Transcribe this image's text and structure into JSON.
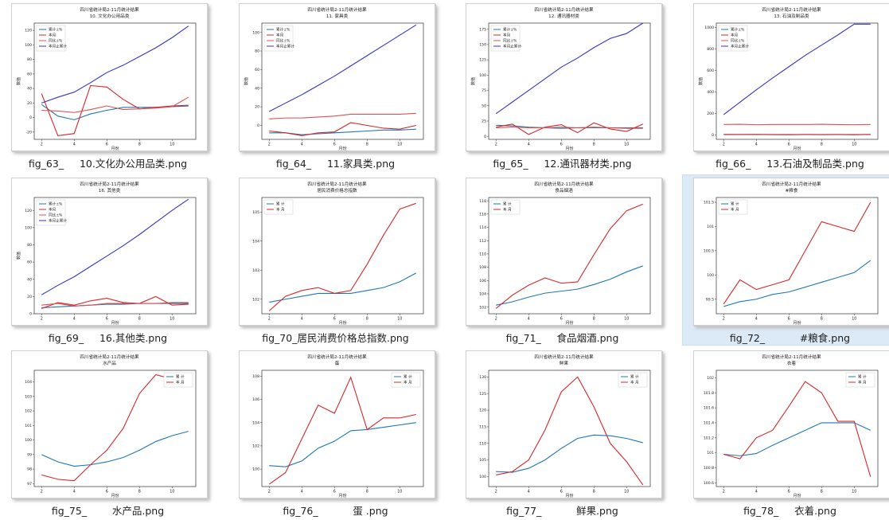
{
  "tiles": [
    {
      "caption": "fig_63_     10.文化办公用品类.png",
      "chart_data": {
        "type": "line",
        "title": "四川省统计局2-11月统计结果",
        "subtitle": "10. 文化办公用品类",
        "xlabel": "月份",
        "ylabel": "数值",
        "x": [
          2,
          3,
          4,
          5,
          6,
          7,
          8,
          9,
          10,
          11
        ],
        "xticks": [
          2,
          4,
          6,
          8,
          10
        ],
        "yticks": [
          -20,
          0,
          20,
          40,
          60,
          80,
          100,
          120
        ],
        "ylim": [
          -30,
          130
        ],
        "legend": "top-left",
        "series": [
          {
            "name": "累计±%",
            "color": "#1f77b4",
            "values": [
              18,
              2,
              -3,
              5,
              10,
              14,
              14,
              14,
              15,
              16
            ]
          },
          {
            "name": "本月",
            "color": "#d62728",
            "values": [
              33,
              -25,
              -22,
              44,
              42,
              25,
              12,
              14,
              16,
              17
            ]
          },
          {
            "name": "同比±%",
            "color": "#e05050",
            "values": [
              10,
              9,
              7,
              11,
              16,
              11,
              12,
              13,
              15,
              28
            ]
          },
          {
            "name": "本月止累计",
            "color": "#3535c8",
            "values": [
              20,
              28,
              35,
              48,
              62,
              72,
              84,
              96,
              110,
              126
            ]
          }
        ]
      }
    },
    {
      "caption": "fig_64_     11.家具类.png",
      "chart_data": {
        "type": "line",
        "title": "四川省统计局2-11月统计结果",
        "subtitle": "11. 家具类",
        "xlabel": "月份",
        "ylabel": "数值",
        "x": [
          2,
          3,
          4,
          5,
          6,
          7,
          8,
          9,
          10,
          11
        ],
        "xticks": [
          2,
          4,
          6,
          8,
          10
        ],
        "yticks": [
          0,
          20,
          40,
          60,
          80,
          100
        ],
        "ylim": [
          -15,
          110
        ],
        "legend": "top-left",
        "series": [
          {
            "name": "累计±%",
            "color": "#1f77b4",
            "values": [
              -8,
              -8,
              -10,
              -9,
              -8,
              -7,
              -6,
              -5,
              -5,
              -4
            ]
          },
          {
            "name": "本月",
            "color": "#d62728",
            "values": [
              -6,
              -8,
              -11,
              -8,
              -7,
              3,
              0,
              -3,
              -4,
              0
            ]
          },
          {
            "name": "同比±%",
            "color": "#e05050",
            "values": [
              7,
              8,
              8,
              9,
              10,
              12,
              12,
              12,
              12,
              13
            ]
          },
          {
            "name": "本月止累计",
            "color": "#3535c8",
            "values": [
              15,
              24,
              33,
              43,
              53,
              64,
              75,
              86,
              97,
              108
            ]
          }
        ]
      }
    },
    {
      "caption": "fig_65_     12.通讯器材类.png",
      "chart_data": {
        "type": "line",
        "title": "四川省统计局2-11月统计结果",
        "subtitle": "12. 通讯器材类",
        "xlabel": "月份",
        "ylabel": "数值",
        "x": [
          2,
          3,
          4,
          5,
          6,
          7,
          8,
          9,
          10,
          11
        ],
        "xticks": [
          2,
          4,
          6,
          8,
          10
        ],
        "yticks": [
          0,
          25,
          50,
          75,
          100,
          125,
          150,
          175
        ],
        "ylim": [
          -5,
          185
        ],
        "legend": "top-left",
        "series": [
          {
            "name": "累计±%",
            "color": "#1f77b4",
            "values": [
              18,
              17,
              15,
              14,
              13,
              14,
              14,
              14,
              14,
              14
            ]
          },
          {
            "name": "本月",
            "color": "#d62728",
            "values": [
              15,
              20,
              3,
              15,
              19,
              6,
              22,
              12,
              8,
              20
            ]
          },
          {
            "name": "同比±%",
            "color": "#e05050",
            "values": [
              14,
              15,
              14,
              14,
              15,
              14,
              15,
              14,
              13,
              13
            ]
          },
          {
            "name": "本月止累计",
            "color": "#3535c8",
            "values": [
              37,
              56,
              75,
              94,
              113,
              128,
              145,
              160,
              168,
              185
            ]
          }
        ]
      }
    },
    {
      "caption": "fig_66_     13.石油及制品类.png",
      "chart_data": {
        "type": "line",
        "title": "四川省统计局2-11月统计结果",
        "subtitle": "13. 石油及制品类",
        "xlabel": "月份",
        "ylabel": "数值",
        "x": [
          2,
          3,
          4,
          5,
          6,
          7,
          8,
          9,
          10,
          11
        ],
        "xticks": [
          2,
          4,
          6,
          8,
          10
        ],
        "yticks": [
          0,
          200,
          400,
          600,
          800,
          1000
        ],
        "ylim": [
          -40,
          1040
        ],
        "legend": "top-left",
        "series": [
          {
            "name": "累计±%",
            "color": "#1f77b4",
            "values": [
              5,
              5,
              5,
              5,
              5,
              5,
              5,
              5,
              5,
              5
            ]
          },
          {
            "name": "本月",
            "color": "#d62728",
            "values": [
              6,
              5,
              6,
              4,
              3,
              5,
              4,
              5,
              3,
              6
            ]
          },
          {
            "name": "同比±%",
            "color": "#e05050",
            "values": [
              98,
              100,
              96,
              98,
              98,
              98,
              100,
              97,
              96,
              98
            ]
          },
          {
            "name": "本月止累计",
            "color": "#3535c8",
            "values": [
              190,
              305,
              420,
              530,
              635,
              740,
              835,
              930,
              1030,
              1030
            ]
          }
        ]
      }
    },
    {
      "caption": "fig_69_     16.其他类.png",
      "chart_data": {
        "type": "line",
        "title": "四川省统计局2-11月统计结果",
        "subtitle": "16. 其他类",
        "xlabel": "月份",
        "ylabel": "数值",
        "x": [
          2,
          3,
          4,
          5,
          6,
          7,
          8,
          9,
          10,
          11
        ],
        "xticks": [
          2,
          4,
          6,
          8,
          10
        ],
        "yticks": [
          0,
          20,
          40,
          60,
          80,
          100,
          120
        ],
        "ylim": [
          0,
          135
        ],
        "legend": "top-left",
        "series": [
          {
            "name": "累计±%",
            "color": "#1f77b4",
            "values": [
              7,
              8,
              9,
              10,
              11,
              11,
              12,
              12,
              12,
              12
            ]
          },
          {
            "name": "本月",
            "color": "#d62728",
            "values": [
              6,
              13,
              10,
              15,
              18,
              13,
              12,
              20,
              10,
              11
            ]
          },
          {
            "name": "同比±%",
            "color": "#e05050",
            "values": [
              10,
              12,
              9,
              10,
              12,
              12,
              12,
              12,
              13,
              13
            ]
          },
          {
            "name": "本月止累计",
            "color": "#3535c8",
            "values": [
              22,
              33,
              43,
              55,
              67,
              79,
              92,
              106,
              120,
              133
            ]
          }
        ]
      }
    },
    {
      "caption": "fig_70_居民消费价格总指数.png",
      "chart_data": {
        "type": "line",
        "title": "四川省统计局2-11月统计结果",
        "subtitle": "居民消费价格总指数",
        "xlabel": "月份",
        "ylabel": "",
        "x": [
          2,
          3,
          4,
          5,
          6,
          7,
          8,
          9,
          10,
          11
        ],
        "xticks": [
          2,
          4,
          6,
          8,
          10
        ],
        "yticks": [
          102,
          103,
          104,
          105
        ],
        "ylim": [
          101.5,
          105.5
        ],
        "legend": "top-left",
        "series": [
          {
            "name": "累    计",
            "color": "#1f77b4",
            "values": [
              101.9,
              102.0,
              102.1,
              102.2,
              102.2,
              102.2,
              102.3,
              102.4,
              102.6,
              102.9
            ]
          },
          {
            "name": "本    月",
            "color": "#d62728",
            "values": [
              101.6,
              102.1,
              102.3,
              102.4,
              102.2,
              102.3,
              103.2,
              104.2,
              105.1,
              105.3
            ]
          }
        ]
      }
    },
    {
      "caption": "fig_71_     食品烟酒.png",
      "chart_data": {
        "type": "line",
        "title": "四川省统计局2-11月统计结果",
        "subtitle": "食品烟酒",
        "xlabel": "月份",
        "ylabel": "",
        "x": [
          2,
          3,
          4,
          5,
          6,
          7,
          8,
          9,
          10,
          11
        ],
        "xticks": [
          2,
          4,
          6,
          8,
          10
        ],
        "yticks": [
          102,
          104,
          106,
          108,
          110,
          112,
          114,
          116,
          118
        ],
        "ylim": [
          101,
          118.5
        ],
        "legend": "top-left",
        "series": [
          {
            "name": "累    计",
            "color": "#1f77b4",
            "values": [
              102.3,
              102.8,
              103.5,
              104.1,
              104.4,
              104.7,
              105.4,
              106.2,
              107.3,
              108.2
            ]
          },
          {
            "name": "本    月",
            "color": "#d62728",
            "values": [
              101.8,
              103.8,
              105.3,
              106.4,
              105.6,
              105.8,
              109.9,
              113.8,
              116.5,
              117.5
            ]
          }
        ]
      }
    },
    {
      "caption": "fig_72_           #粮食.png",
      "selected": true,
      "chart_data": {
        "type": "line",
        "title": "四川省统计局2-11月统计结果",
        "subtitle": "#粮食",
        "xlabel": "月份",
        "ylabel": "",
        "x": [
          2,
          3,
          4,
          5,
          6,
          7,
          8,
          9,
          10,
          11
        ],
        "xticks": [
          2,
          4,
          6,
          8,
          10
        ],
        "yticks": [
          99.5,
          100.0,
          100.5,
          101.0,
          101.5
        ],
        "ylim": [
          99.2,
          101.6
        ],
        "legend": "top-left",
        "series": [
          {
            "name": "累    计",
            "color": "#1f77b4",
            "values": [
              99.35,
              99.45,
              99.5,
              99.6,
              99.65,
              99.75,
              99.85,
              99.95,
              100.05,
              100.3
            ]
          },
          {
            "name": "本    月",
            "color": "#d62728",
            "values": [
              99.4,
              99.9,
              99.7,
              99.8,
              99.9,
              100.5,
              101.1,
              101.0,
              100.9,
              101.5
            ]
          }
        ]
      }
    },
    {
      "caption": "fig_75_        水产品.png",
      "chart_data": {
        "type": "line",
        "title": "四川省统计局2-11月统计结果",
        "subtitle": "水产品",
        "xlabel": "月份",
        "ylabel": "",
        "x": [
          2,
          3,
          4,
          5,
          6,
          7,
          8,
          9,
          10,
          11
        ],
        "xticks": [
          2,
          4,
          6,
          8,
          10
        ],
        "yticks": [
          97,
          98,
          99,
          100,
          101,
          102,
          103,
          104
        ],
        "ylim": [
          96.8,
          104.8
        ],
        "legend": "top-right",
        "series": [
          {
            "name": "累    计",
            "color": "#1f77b4",
            "values": [
              99.0,
              98.5,
              98.2,
              98.3,
              98.5,
              98.8,
              99.3,
              99.9,
              100.3,
              100.6
            ]
          },
          {
            "name": "本    月",
            "color": "#d62728",
            "values": [
              97.6,
              97.3,
              97.2,
              98.3,
              99.3,
              100.8,
              103.2,
              104.5,
              104.2,
              103.8
            ]
          }
        ]
      }
    },
    {
      "caption": "fig_76_           蛋 .png",
      "chart_data": {
        "type": "line",
        "title": "四川省统计局2-11月统计结果",
        "subtitle": "蛋",
        "xlabel": "月份",
        "ylabel": "",
        "x": [
          2,
          3,
          4,
          5,
          6,
          7,
          8,
          9,
          10,
          11
        ],
        "xticks": [
          2,
          4,
          6,
          8,
          10
        ],
        "yticks": [
          100,
          102,
          104,
          106,
          108
        ],
        "ylim": [
          98.5,
          108.5
        ],
        "legend": "top-right",
        "series": [
          {
            "name": "累    计",
            "color": "#1f77b4",
            "values": [
              100.3,
              100.2,
              100.7,
              101.8,
              102.4,
              103.3,
              103.4,
              103.6,
              103.8,
              104.0
            ]
          },
          {
            "name": "本    月",
            "color": "#d62728",
            "values": [
              98.7,
              99.7,
              102.6,
              105.5,
              104.8,
              107.9,
              103.4,
              104.4,
              104.4,
              104.7
            ]
          }
        ]
      }
    },
    {
      "caption": "fig_77_           鲜果.png",
      "chart_data": {
        "type": "line",
        "title": "四川省统计局2-11月统计结果",
        "subtitle": "鲜果",
        "xlabel": "月份",
        "ylabel": "",
        "x": [
          2,
          3,
          4,
          5,
          6,
          7,
          8,
          9,
          10,
          11
        ],
        "xticks": [
          2,
          4,
          6,
          8,
          10
        ],
        "yticks": [
          100,
          105,
          110,
          115,
          120,
          125,
          130
        ],
        "ylim": [
          97,
          132
        ],
        "legend": "top-right",
        "series": [
          {
            "name": "累    计",
            "color": "#1f77b4",
            "values": [
              101.5,
              101.3,
              102.5,
              105.0,
              108.5,
              111.5,
              112.5,
              112.3,
              111.5,
              110.2
            ]
          },
          {
            "name": "本    月",
            "color": "#d62728",
            "values": [
              100.5,
              101.5,
              105.0,
              114.0,
              125.5,
              130.0,
              121.0,
              110.0,
              104.5,
              97.5
            ]
          }
        ]
      }
    },
    {
      "caption": "fig_78_     衣着.png",
      "chart_data": {
        "type": "line",
        "title": "四川省统计局2-11月统计结果",
        "subtitle": "衣着",
        "xlabel": "月份",
        "ylabel": "",
        "x": [
          2,
          3,
          4,
          5,
          6,
          7,
          8,
          9,
          10,
          11
        ],
        "xticks": [
          2,
          4,
          6,
          8,
          10
        ],
        "yticks": [
          100.6,
          100.8,
          101.0,
          101.2,
          101.4,
          101.6,
          101.8,
          102.0
        ],
        "ylim": [
          100.55,
          102.1
        ],
        "legend": "top-right",
        "series": [
          {
            "name": "累    计",
            "color": "#1f77b4",
            "values": [
              100.98,
              100.96,
              100.99,
              101.1,
              101.2,
              101.3,
              101.4,
              101.4,
              101.4,
              101.3
            ]
          },
          {
            "name": "本    月",
            "color": "#d62728",
            "values": [
              100.98,
              100.92,
              101.2,
              101.3,
              101.62,
              101.95,
              101.8,
              101.42,
              101.42,
              100.68
            ]
          }
        ]
      }
    }
  ]
}
